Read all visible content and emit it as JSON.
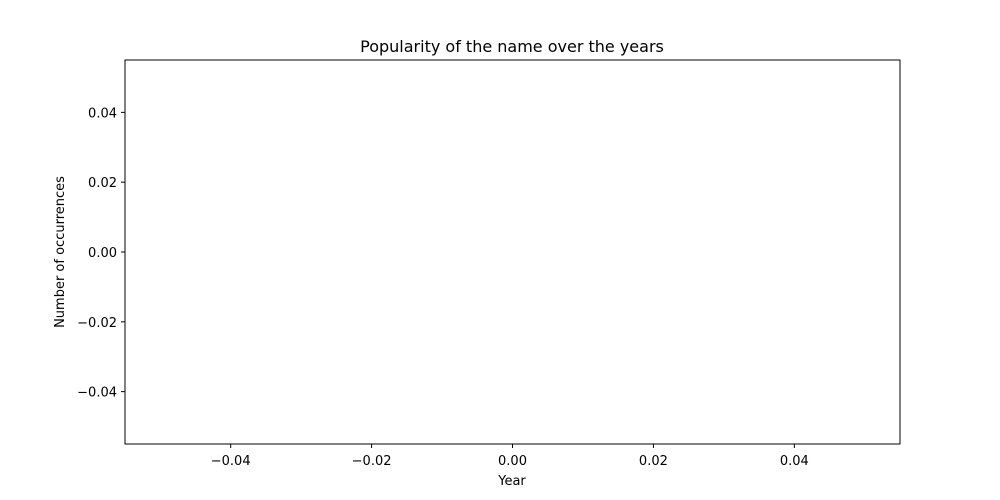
{
  "chart_data": {
    "type": "line",
    "title": "Popularity of the name  over the years",
    "xlabel": "Year",
    "ylabel": "Number of occurrences",
    "xlim": [
      -0.055,
      0.055
    ],
    "ylim": [
      -0.055,
      0.055
    ],
    "x_ticks": [
      -0.04,
      -0.02,
      0.0,
      0.02,
      0.04
    ],
    "x_tick_labels": [
      "−0.04",
      "−0.02",
      "0.00",
      "0.02",
      "0.04"
    ],
    "y_ticks": [
      -0.04,
      -0.02,
      0.0,
      0.02,
      0.04
    ],
    "y_tick_labels": [
      "−0.04",
      "−0.02",
      "0.00",
      "0.02",
      "0.04"
    ],
    "series": [],
    "grid": false,
    "colors": {
      "axes": "#000000",
      "background": "#ffffff"
    }
  }
}
